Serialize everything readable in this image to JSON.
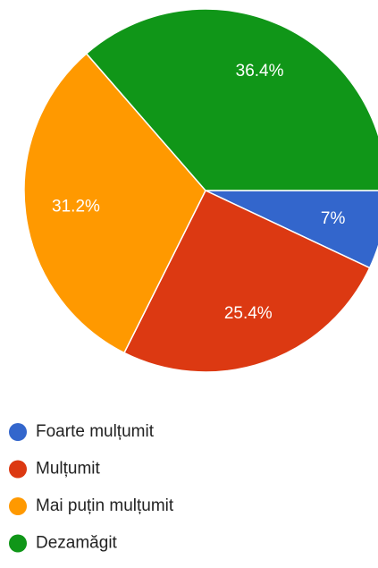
{
  "chart_data": {
    "type": "pie",
    "categories": [
      "Foarte mulțumit",
      "Mulțumit",
      "Mai puțin mulțumit",
      "Dezamăgit"
    ],
    "values": [
      7,
      25.4,
      31.2,
      36.4
    ],
    "value_labels": [
      "7%",
      "25.4%",
      "31.2%",
      "36.4%"
    ],
    "colors": [
      "#3366cc",
      "#dc3912",
      "#ff9900",
      "#109618"
    ]
  }
}
